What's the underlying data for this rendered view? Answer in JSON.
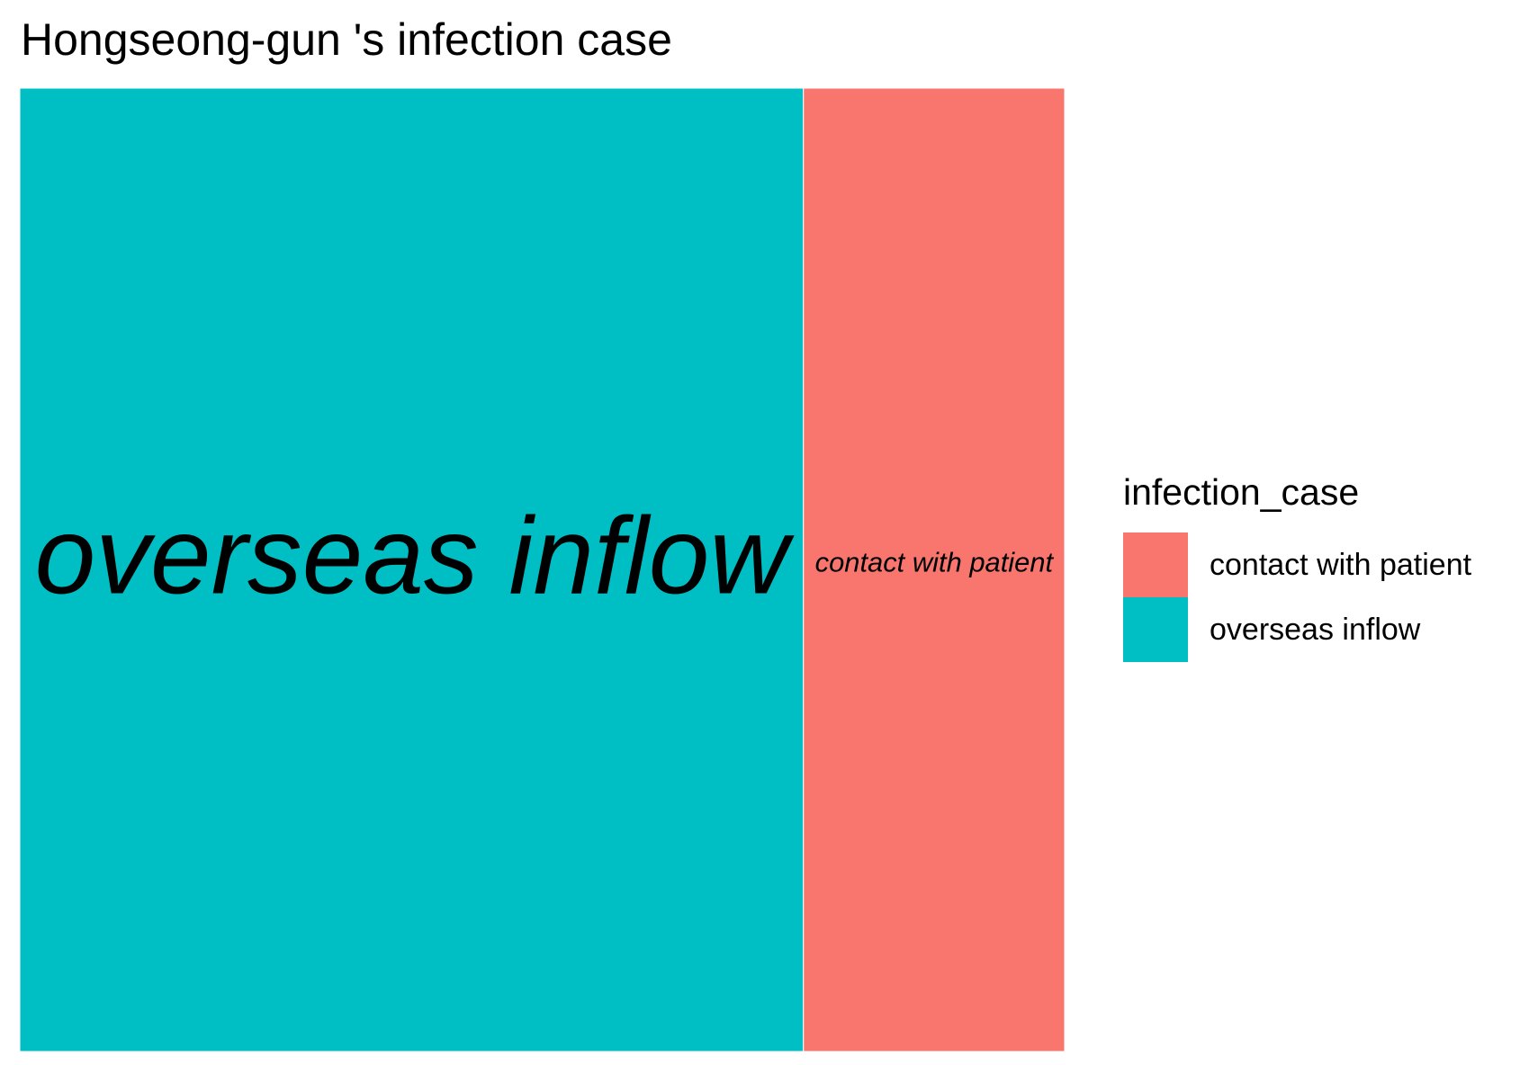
{
  "chart_data": {
    "type": "treemap",
    "title": "Hongseong-gun 's infection case",
    "legend_title": "infection_case",
    "legend_position": "right",
    "tiles": [
      {
        "label": "overseas inflow",
        "value": 3,
        "color": "#00BFC4"
      },
      {
        "label": "contact with patient",
        "value": 1,
        "color": "#F8766D"
      }
    ],
    "legend": [
      {
        "label": "contact with patient",
        "color": "#F8766D"
      },
      {
        "label": "overseas inflow",
        "color": "#00BFC4"
      }
    ]
  }
}
